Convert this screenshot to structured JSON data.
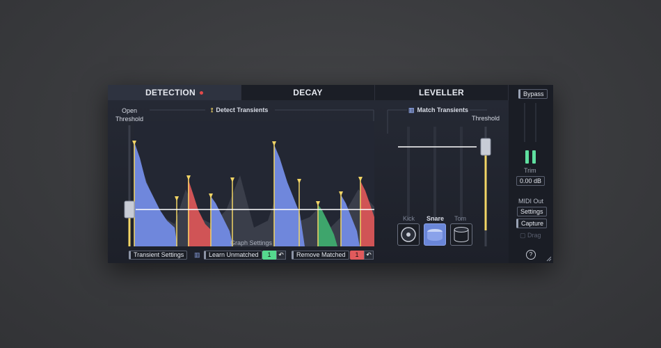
{
  "tabs": [
    {
      "label": "DETECTION",
      "active": true
    },
    {
      "label": "DECAY",
      "active": false
    },
    {
      "label": "LEVELLER",
      "active": false
    }
  ],
  "detection": {
    "open_threshold_label": "Open\nThreshold",
    "detect_transients_label": "Detect Transients",
    "graph_settings_label": "Graph Settings"
  },
  "match": {
    "match_transients_label": "Match Transients",
    "threshold_label": "Threshold",
    "drums": [
      {
        "label": "Kick",
        "active": false,
        "icon": "kick-drum-icon"
      },
      {
        "label": "Snare",
        "active": true,
        "icon": "snare-drum-icon"
      },
      {
        "label": "Tom",
        "active": false,
        "icon": "tom-drum-icon"
      }
    ]
  },
  "bottom": {
    "transient_settings": "Transient Settings",
    "learn_unmatched": "Learn Unmatched",
    "unmatched_count": "1",
    "remove_matched": "Remove Matched",
    "matched_count": "1",
    "undo_glyph": "↶"
  },
  "side": {
    "bypass": "Bypass",
    "trim_label": "Trim",
    "trim_value": "0.00 dB",
    "midi_out_label": "MIDI Out",
    "settings": "Settings",
    "capture": "Capture",
    "drag": "Drag",
    "help": "?"
  },
  "colors": {
    "accent_yellow": "#f2d565",
    "blue_wave": "#6f87dc",
    "red_wave": "#d05456",
    "green_wave": "#3ea56c",
    "meter_green": "#5fe0a0",
    "count_green": "#55d88e",
    "count_red": "#e05a5c"
  }
}
